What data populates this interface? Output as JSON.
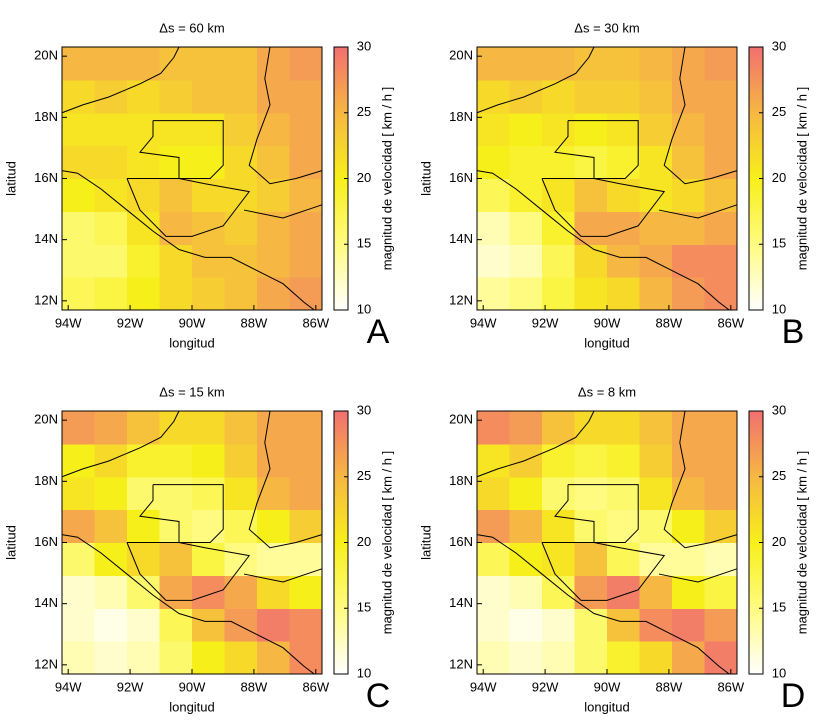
{
  "chart_data": [
    {
      "type": "heatmap",
      "title": "Δs = 60 km",
      "xlabel": "longitud",
      "ylabel": "latitud",
      "colorbar_label": "magnitud de velocidad [ km / h ]",
      "panel_label": "A",
      "xlim": [
        -94.2,
        -85.8
      ],
      "ylim": [
        11.7,
        20.3
      ],
      "xticks": [
        {
          "value": -94,
          "label": "94W"
        },
        {
          "value": -92,
          "label": "92W"
        },
        {
          "value": -90,
          "label": "90W"
        },
        {
          "value": -88,
          "label": "88W"
        },
        {
          "value": -86,
          "label": "86W"
        }
      ],
      "yticks": [
        {
          "value": 12,
          "label": "12N"
        },
        {
          "value": 14,
          "label": "14N"
        },
        {
          "value": 16,
          "label": "16N"
        },
        {
          "value": 18,
          "label": "18N"
        },
        {
          "value": 20,
          "label": "20N"
        }
      ],
      "xbins": [
        -94.2,
        -93.15,
        -92.1,
        -91.05,
        -90,
        -88.95,
        -87.9,
        -86.85,
        -85.8
      ],
      "ybins": [
        11.7,
        12.775,
        13.85,
        14.925,
        16,
        17.075,
        18.15,
        19.225,
        20.3
      ],
      "values": [
        [
          17,
          18,
          20,
          22,
          23,
          24,
          26,
          27
        ],
        [
          16,
          16,
          19,
          22,
          24,
          24,
          25,
          26
        ],
        [
          16,
          17,
          21,
          25,
          24,
          23,
          25,
          26
        ],
        [
          20,
          21,
          22,
          24,
          22,
          22,
          23,
          25
        ],
        [
          22,
          22,
          21,
          20,
          20,
          22,
          24,
          26
        ],
        [
          21,
          21,
          21,
          21,
          21,
          23,
          25,
          26
        ],
        [
          22,
          23,
          22,
          23,
          24,
          24,
          26,
          26
        ],
        [
          25,
          25,
          25,
          24,
          24,
          24,
          26,
          27
        ]
      ],
      "clim": [
        10,
        30
      ],
      "cticks": [
        10,
        15,
        20,
        25,
        30
      ],
      "colors": [
        "#ffffff",
        "#fffb80",
        "#f7ef1a",
        "#f6b743",
        "#f27070"
      ]
    },
    {
      "type": "heatmap",
      "title": "Δs = 30 km",
      "xlabel": "longitud",
      "ylabel": "latitud",
      "colorbar_label": "magnitud de velocidad [ km / h ]",
      "panel_label": "B",
      "xlim": [
        -94.2,
        -85.8
      ],
      "ylim": [
        11.7,
        20.3
      ],
      "xticks": [
        {
          "value": -94,
          "label": "94W"
        },
        {
          "value": -92,
          "label": "92W"
        },
        {
          "value": -90,
          "label": "90W"
        },
        {
          "value": -88,
          "label": "88W"
        },
        {
          "value": -86,
          "label": "86W"
        }
      ],
      "yticks": [
        {
          "value": 12,
          "label": "12N"
        },
        {
          "value": 14,
          "label": "14N"
        },
        {
          "value": 16,
          "label": "16N"
        },
        {
          "value": 18,
          "label": "18N"
        },
        {
          "value": 20,
          "label": "20N"
        }
      ],
      "xbins": [
        -94.2,
        -93.15,
        -92.1,
        -91.05,
        -90,
        -88.95,
        -87.9,
        -86.85,
        -85.8
      ],
      "ybins": [
        11.7,
        12.775,
        13.85,
        14.925,
        16,
        17.075,
        18.15,
        19.225,
        20.3
      ],
      "values": [
        [
          14,
          15,
          18,
          21,
          22,
          25,
          27,
          28
        ],
        [
          12,
          13,
          17,
          22,
          25,
          26,
          28,
          28
        ],
        [
          13,
          15,
          19,
          26,
          26,
          25,
          25,
          26
        ],
        [
          17,
          19,
          21,
          24,
          22,
          21,
          22,
          24
        ],
        [
          20,
          19,
          19,
          18,
          19,
          21,
          24,
          26
        ],
        [
          21,
          20,
          21,
          20,
          21,
          23,
          25,
          26
        ],
        [
          22,
          23,
          22,
          23,
          23,
          24,
          26,
          26
        ],
        [
          25,
          25,
          25,
          24,
          24,
          25,
          26,
          27
        ]
      ],
      "clim": [
        10,
        30
      ],
      "cticks": [
        10,
        15,
        20,
        25,
        30
      ],
      "colors": [
        "#ffffff",
        "#fffb80",
        "#f7ef1a",
        "#f6b743",
        "#f27070"
      ]
    },
    {
      "type": "heatmap",
      "title": "Δs = 15 km",
      "xlabel": "longitud",
      "ylabel": "latitud",
      "colorbar_label": "magnitud de velocidad [ km / h ]",
      "panel_label": "C",
      "xlim": [
        -94.2,
        -85.8
      ],
      "ylim": [
        11.7,
        20.3
      ],
      "xticks": [
        {
          "value": -94,
          "label": "94W"
        },
        {
          "value": -92,
          "label": "92W"
        },
        {
          "value": -90,
          "label": "90W"
        },
        {
          "value": -88,
          "label": "88W"
        },
        {
          "value": -86,
          "label": "86W"
        }
      ],
      "yticks": [
        {
          "value": 12,
          "label": "12N"
        },
        {
          "value": 14,
          "label": "14N"
        },
        {
          "value": 16,
          "label": "16N"
        },
        {
          "value": 18,
          "label": "18N"
        },
        {
          "value": 20,
          "label": "20N"
        }
      ],
      "xbins": [
        -94.2,
        -93.15,
        -92.1,
        -91.05,
        -90,
        -88.95,
        -87.9,
        -86.85,
        -85.8
      ],
      "ybins": [
        11.7,
        12.775,
        13.85,
        14.925,
        16,
        17.075,
        18.15,
        19.225,
        20.3
      ],
      "values": [
        [
          13,
          12,
          13,
          16,
          20,
          22,
          25,
          28
        ],
        [
          12,
          11,
          12,
          17,
          24,
          27,
          29,
          28
        ],
        [
          12,
          13,
          16,
          26,
          28,
          26,
          22,
          20
        ],
        [
          16,
          20,
          22,
          24,
          18,
          15,
          14,
          14
        ],
        [
          26,
          24,
          20,
          16,
          15,
          17,
          20,
          23
        ],
        [
          21,
          20,
          16,
          16,
          17,
          21,
          25,
          26
        ],
        [
          20,
          22,
          19,
          19,
          20,
          23,
          26,
          26
        ],
        [
          27,
          26,
          24,
          22,
          22,
          24,
          26,
          26
        ]
      ],
      "clim": [
        10,
        30
      ],
      "cticks": [
        10,
        15,
        20,
        25,
        30
      ],
      "colors": [
        "#ffffff",
        "#fffb80",
        "#f7ef1a",
        "#f6b743",
        "#f27070"
      ]
    },
    {
      "type": "heatmap",
      "title": "Δs = 8 km",
      "xlabel": "longitud",
      "ylabel": "latitud",
      "colorbar_label": "magnitud de velocidad [ km / h ]",
      "panel_label": "D",
      "xlim": [
        -94.2,
        -85.8
      ],
      "ylim": [
        11.7,
        20.3
      ],
      "xticks": [
        {
          "value": -94,
          "label": "94W"
        },
        {
          "value": -92,
          "label": "92W"
        },
        {
          "value": -90,
          "label": "90W"
        },
        {
          "value": -88,
          "label": "88W"
        },
        {
          "value": -86,
          "label": "86W"
        }
      ],
      "yticks": [
        {
          "value": 12,
          "label": "12N"
        },
        {
          "value": 14,
          "label": "14N"
        },
        {
          "value": 16,
          "label": "16N"
        },
        {
          "value": 18,
          "label": "18N"
        },
        {
          "value": 20,
          "label": "20N"
        }
      ],
      "xbins": [
        -94.2,
        -93.15,
        -92.1,
        -91.05,
        -90,
        -88.95,
        -87.9,
        -86.85,
        -85.8
      ],
      "ybins": [
        11.7,
        12.775,
        13.85,
        14.925,
        16,
        17.075,
        18.15,
        19.225,
        20.3
      ],
      "values": [
        [
          13,
          12,
          13,
          16,
          19,
          22,
          26,
          29
        ],
        [
          12,
          11,
          12,
          16,
          24,
          28,
          29,
          27
        ],
        [
          12,
          13,
          17,
          27,
          29,
          25,
          20,
          18
        ],
        [
          17,
          20,
          21,
          24,
          17,
          14,
          14,
          13
        ],
        [
          27,
          25,
          21,
          16,
          15,
          16,
          20,
          23
        ],
        [
          22,
          20,
          16,
          15,
          16,
          21,
          25,
          26
        ],
        [
          21,
          23,
          19,
          18,
          19,
          23,
          26,
          26
        ],
        [
          28,
          27,
          24,
          22,
          22,
          24,
          26,
          26
        ]
      ],
      "clim": [
        10,
        30
      ],
      "cticks": [
        10,
        15,
        20,
        25,
        30
      ],
      "colors": [
        "#ffffff",
        "#fffb80",
        "#f7ef1a",
        "#f6b743",
        "#f27070"
      ]
    }
  ]
}
